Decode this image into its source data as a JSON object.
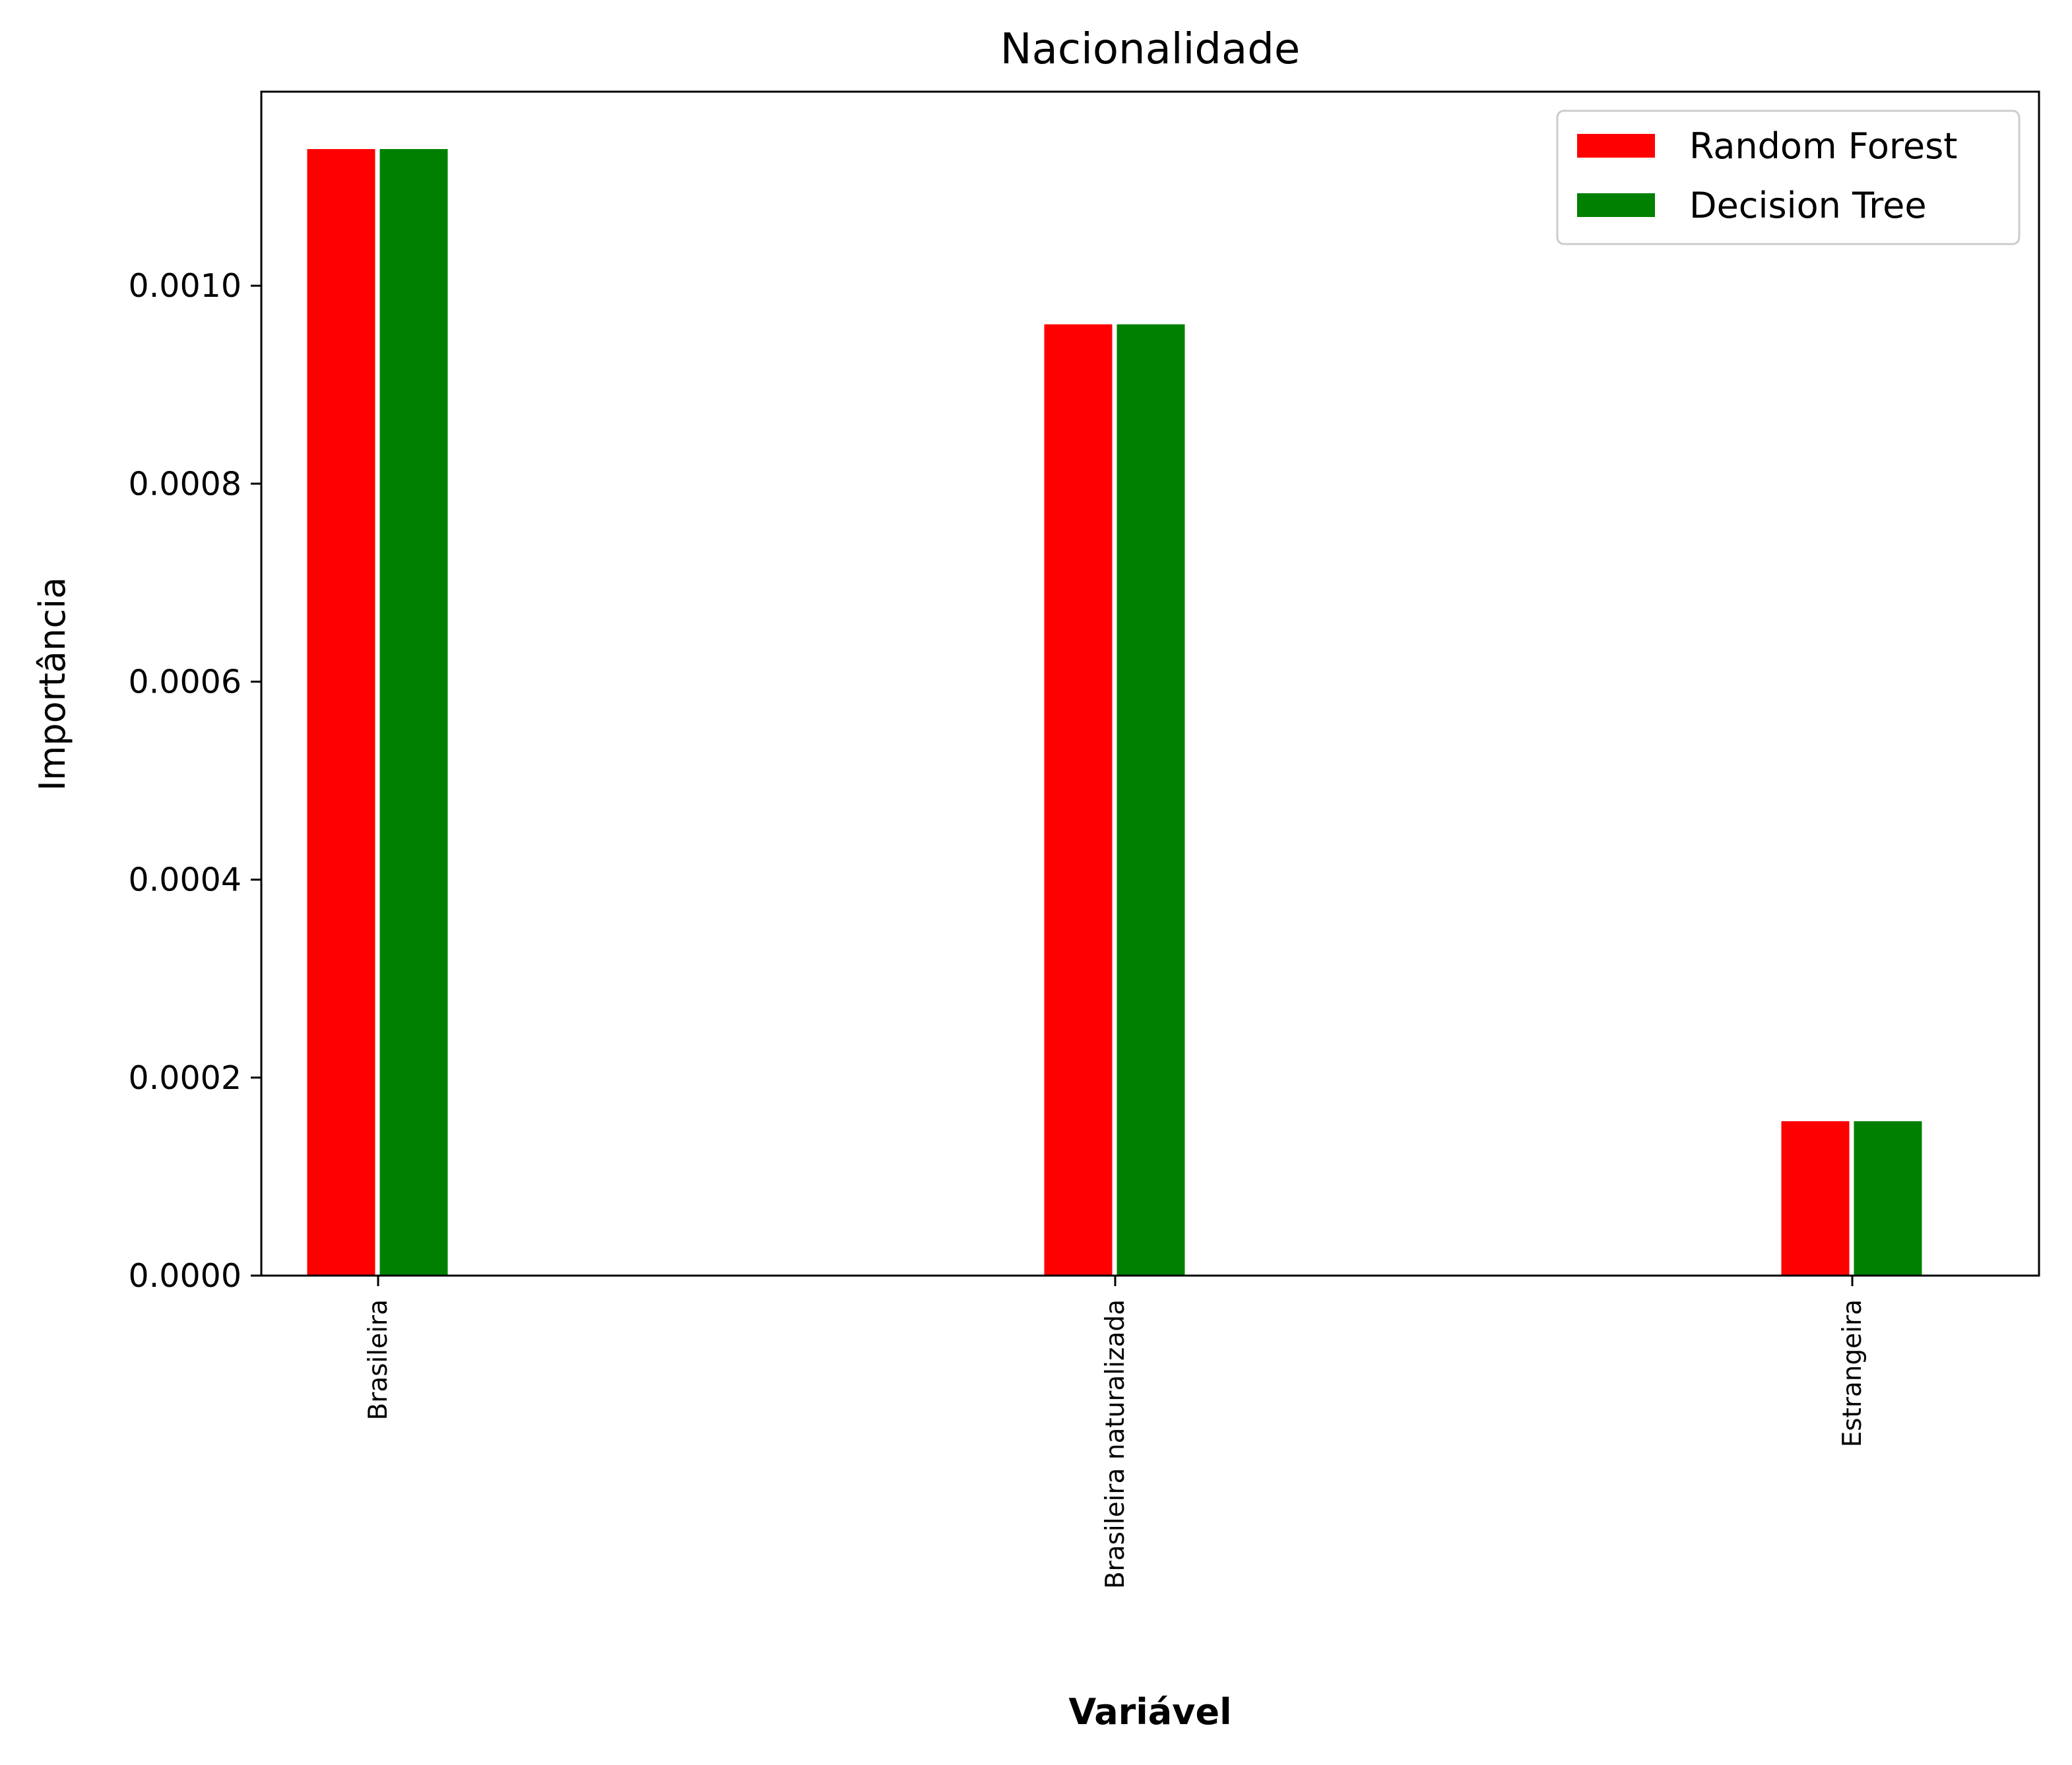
{
  "chart_data": {
    "type": "bar",
    "title": "Nacionalidade",
    "xlabel": "Variável",
    "ylabel": "Importância",
    "categories": [
      "Brasileira",
      "Brasileira naturalizada",
      "Estrangeira"
    ],
    "series": [
      {
        "name": "Random Forest",
        "color": "#ff0000",
        "values": [
          0.001139,
          0.000962,
          0.000157
        ]
      },
      {
        "name": "Decision Tree",
        "color": "#008000",
        "values": [
          0.001139,
          0.000962,
          0.000157
        ]
      }
    ],
    "ylim": [
      0,
      0.001196
    ],
    "yticks": [
      "0.0000",
      "0.0002",
      "0.0004",
      "0.0006",
      "0.0008",
      "0.0010"
    ],
    "ytick_values": [
      0,
      0.0002,
      0.0004,
      0.0006,
      0.0008,
      0.001
    ],
    "grid": false,
    "legend_position": "top-right"
  }
}
